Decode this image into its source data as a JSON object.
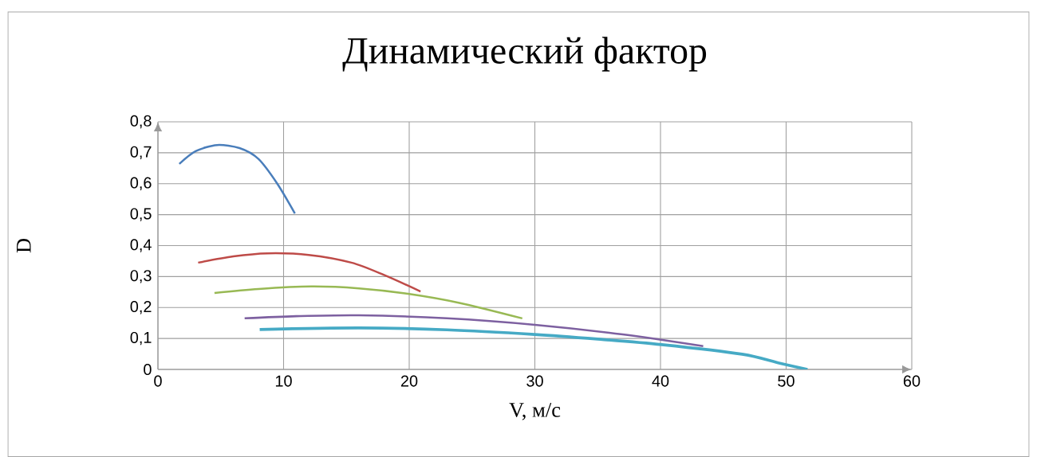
{
  "chart_data": {
    "type": "line",
    "title": "Динамический фактор",
    "xlabel": "V, м/с",
    "ylabel": "D",
    "xlim": [
      0,
      60
    ],
    "xticks": [
      0,
      10,
      20,
      30,
      40,
      50,
      60
    ],
    "ylim": [
      0,
      0.8
    ],
    "yticks": [
      0,
      {
        "value": 0.1,
        "label": "0,1"
      },
      {
        "value": 0.2,
        "label": "0,2"
      },
      {
        "value": 0.3,
        "label": "0,3"
      },
      {
        "value": 0.4,
        "label": "0,4"
      },
      {
        "value": 0.5,
        "label": "0,5"
      },
      {
        "value": 0.6,
        "label": "0,6"
      },
      {
        "value": 0.7,
        "label": "0,7"
      },
      {
        "value": 0.8,
        "label": "0,8"
      }
    ],
    "grid": true,
    "line_style": "solid",
    "series": [
      {
        "color": "#4a7ebb",
        "x": [
          1.7,
          3,
          4.7,
          6.5,
          8,
          9.5,
          10.9
        ],
        "values": [
          0.664,
          0.705,
          0.725,
          0.715,
          0.68,
          0.6,
          0.504
        ]
      },
      {
        "color": "#be4b48",
        "x": [
          3.2,
          6,
          8.7,
          12,
          15.4,
          18,
          20.9
        ],
        "values": [
          0.345,
          0.365,
          0.375,
          0.37,
          0.345,
          0.305,
          0.252
        ]
      },
      {
        "color": "#98b954",
        "x": [
          4.5,
          8,
          12.2,
          16,
          19.8,
          24,
          29
        ],
        "values": [
          0.247,
          0.26,
          0.268,
          0.262,
          0.245,
          0.215,
          0.165
        ]
      },
      {
        "color": "#7d60a0",
        "x": [
          6.9,
          11,
          16,
          23,
          30,
          37,
          43.4
        ],
        "values": [
          0.165,
          0.172,
          0.175,
          0.165,
          0.144,
          0.113,
          0.075
        ]
      },
      {
        "color": "#46aac5",
        "x": [
          8.1,
          16,
          23,
          30,
          35,
          40.1,
          46.5,
          49.5,
          51.7
        ],
        "values": [
          0.129,
          0.134,
          0.128,
          0.113,
          0.098,
          0.08,
          0.049,
          0.02,
          0
        ]
      }
    ]
  }
}
